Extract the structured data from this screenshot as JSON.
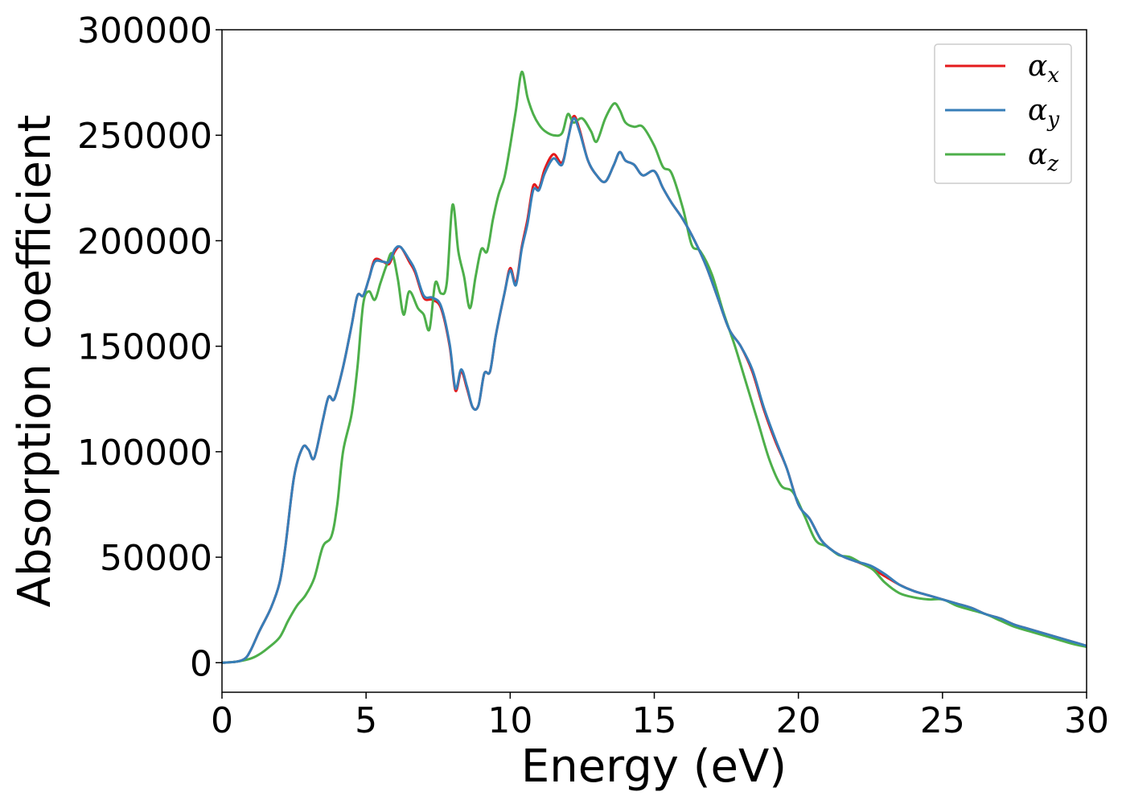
{
  "chart_data": {
    "type": "line",
    "title": "",
    "xlabel": "Energy (eV)",
    "ylabel": "Absorption coefficient",
    "xlim": [
      0,
      30
    ],
    "ylim": [
      -14000,
      300000
    ],
    "xticks": [
      "0",
      "5",
      "10",
      "15",
      "20",
      "25",
      "30"
    ],
    "yticks": [
      "0",
      "50000",
      "100000",
      "150000",
      "200000",
      "250000",
      "300000"
    ],
    "grid": false,
    "legend_position": "top-right",
    "series": [
      {
        "name": "α",
        "subscript": "x",
        "color": "#e41a1c",
        "x": [
          0,
          0.5,
          0.8,
          1.0,
          1.3,
          1.7,
          2.0,
          2.2,
          2.5,
          2.8,
          3.0,
          3.2,
          3.5,
          3.7,
          3.9,
          4.2,
          4.5,
          4.7,
          4.9,
          5.1,
          5.3,
          5.6,
          5.8,
          6.0,
          6.2,
          6.5,
          6.7,
          7.0,
          7.3,
          7.6,
          7.9,
          8.1,
          8.3,
          8.5,
          8.7,
          8.9,
          9.1,
          9.3,
          9.5,
          9.8,
          10.0,
          10.2,
          10.4,
          10.6,
          10.8,
          11.0,
          11.2,
          11.5,
          11.8,
          12.0,
          12.2,
          12.4,
          12.7,
          13.0,
          13.3,
          13.6,
          13.8,
          14.0,
          14.3,
          14.6,
          15.0,
          15.3,
          15.6,
          16.0,
          16.4,
          16.8,
          17.2,
          17.6,
          18.0,
          18.4,
          18.8,
          19.2,
          19.6,
          20.0,
          20.4,
          20.8,
          21.2,
          21.6,
          22.0,
          22.5,
          23.0,
          23.5,
          24.0,
          24.5,
          25.0,
          25.5,
          26.0,
          26.5,
          27.0,
          27.5,
          28.0,
          28.5,
          29.0,
          29.5,
          30.0
        ],
        "y": [
          0,
          500,
          2000,
          6000,
          15000,
          26000,
          38000,
          55000,
          88000,
          102000,
          101000,
          97000,
          115000,
          126000,
          125000,
          140000,
          160000,
          174000,
          174000,
          182000,
          191000,
          190000,
          189000,
          195000,
          197000,
          190000,
          185000,
          173000,
          172000,
          168000,
          150000,
          129000,
          138000,
          130000,
          121000,
          122000,
          137000,
          138000,
          155000,
          175000,
          187000,
          180000,
          197000,
          210000,
          226000,
          225000,
          234000,
          241000,
          237000,
          248000,
          259000,
          253000,
          238000,
          231000,
          228000,
          236000,
          242000,
          238000,
          236000,
          231000,
          233000,
          225000,
          218000,
          210000,
          200000,
          188000,
          173000,
          158000,
          150000,
          138000,
          120000,
          105000,
          92000,
          75000,
          68000,
          58000,
          53000,
          50000,
          48000,
          45000,
          41000,
          37000,
          34000,
          32000,
          30000,
          28000,
          26000,
          23000,
          21000,
          18000,
          16000,
          14000,
          12000,
          10000,
          8000
        ]
      },
      {
        "name": "α",
        "subscript": "y",
        "color": "#377eb8",
        "x": [
          0,
          0.5,
          0.8,
          1.0,
          1.3,
          1.7,
          2.0,
          2.2,
          2.5,
          2.8,
          3.0,
          3.2,
          3.5,
          3.7,
          3.9,
          4.2,
          4.5,
          4.7,
          4.9,
          5.1,
          5.3,
          5.6,
          5.8,
          6.0,
          6.2,
          6.5,
          6.7,
          7.0,
          7.3,
          7.6,
          7.9,
          8.1,
          8.3,
          8.5,
          8.7,
          8.9,
          9.1,
          9.3,
          9.5,
          9.8,
          10.0,
          10.2,
          10.4,
          10.6,
          10.8,
          11.0,
          11.2,
          11.5,
          11.8,
          12.0,
          12.2,
          12.4,
          12.7,
          13.0,
          13.3,
          13.6,
          13.8,
          14.0,
          14.3,
          14.6,
          15.0,
          15.3,
          15.6,
          16.0,
          16.4,
          16.8,
          17.2,
          17.6,
          18.0,
          18.4,
          18.8,
          19.2,
          19.6,
          20.0,
          20.4,
          20.8,
          21.2,
          21.6,
          22.0,
          22.5,
          23.0,
          23.5,
          24.0,
          24.5,
          25.0,
          25.5,
          26.0,
          26.5,
          27.0,
          27.5,
          28.0,
          28.5,
          29.0,
          29.5,
          30.0
        ],
        "y": [
          0,
          500,
          2000,
          6000,
          15000,
          26000,
          38000,
          55000,
          88000,
          102000,
          101000,
          97000,
          115000,
          126000,
          125000,
          140000,
          160000,
          174000,
          174000,
          182000,
          190000,
          190000,
          190000,
          196000,
          197000,
          191000,
          186000,
          174000,
          173000,
          169000,
          151000,
          130000,
          139000,
          131000,
          121000,
          122000,
          137000,
          138000,
          155000,
          175000,
          186000,
          179000,
          196000,
          208000,
          224000,
          224000,
          232000,
          239000,
          236000,
          248000,
          258000,
          252000,
          238000,
          231000,
          228000,
          236000,
          242000,
          238000,
          236000,
          231000,
          233000,
          225000,
          218000,
          210000,
          200000,
          188000,
          173000,
          158000,
          150000,
          139000,
          121000,
          106000,
          92000,
          75000,
          68000,
          58000,
          53000,
          50000,
          48000,
          46000,
          42000,
          37000,
          34000,
          32000,
          30000,
          28000,
          26000,
          23000,
          21000,
          18000,
          16000,
          14000,
          12000,
          10000,
          8000
        ]
      },
      {
        "name": "α",
        "subscript": "z",
        "color": "#4daf4a",
        "x": [
          0,
          0.5,
          1.0,
          1.3,
          1.6,
          2.0,
          2.3,
          2.6,
          2.9,
          3.2,
          3.5,
          3.8,
          4.0,
          4.2,
          4.5,
          4.7,
          4.9,
          5.1,
          5.3,
          5.5,
          5.7,
          5.9,
          6.1,
          6.3,
          6.5,
          6.8,
          7.0,
          7.2,
          7.4,
          7.6,
          7.8,
          8.0,
          8.2,
          8.4,
          8.6,
          8.8,
          9.0,
          9.2,
          9.4,
          9.6,
          9.8,
          10.0,
          10.2,
          10.4,
          10.6,
          10.8,
          11.0,
          11.2,
          11.5,
          11.8,
          12.0,
          12.2,
          12.5,
          12.8,
          13.0,
          13.3,
          13.6,
          13.8,
          14.0,
          14.3,
          14.6,
          15.0,
          15.3,
          15.6,
          16.0,
          16.3,
          16.6,
          17.0,
          17.4,
          17.8,
          18.2,
          18.6,
          19.0,
          19.4,
          19.8,
          20.2,
          20.6,
          21.0,
          21.4,
          21.8,
          22.2,
          22.6,
          23.0,
          23.5,
          24.0,
          24.5,
          25.0,
          25.5,
          26.0,
          26.5,
          27.0,
          27.5,
          28.0,
          28.5,
          29.0,
          29.5,
          30.0
        ],
        "y": [
          0,
          500,
          2000,
          4000,
          7000,
          12000,
          20000,
          27000,
          32000,
          40000,
          55000,
          60000,
          75000,
          100000,
          118000,
          140000,
          170000,
          176000,
          172000,
          180000,
          188000,
          194000,
          182000,
          165000,
          176000,
          168000,
          165000,
          158000,
          180000,
          175000,
          180000,
          217000,
          195000,
          183000,
          168000,
          183000,
          196000,
          195000,
          210000,
          222000,
          230000,
          245000,
          262000,
          280000,
          268000,
          260000,
          255000,
          252000,
          250000,
          251000,
          260000,
          256000,
          258000,
          252000,
          247000,
          258000,
          265000,
          262000,
          256000,
          254000,
          254000,
          245000,
          235000,
          232000,
          215000,
          198000,
          195000,
          184000,
          166000,
          150000,
          132000,
          114000,
          96000,
          84000,
          81000,
          70000,
          58000,
          55000,
          51000,
          50000,
          47000,
          44000,
          38000,
          33000,
          31000,
          30000,
          30000,
          27000,
          25000,
          23000,
          20000,
          17000,
          15000,
          13000,
          11000,
          9000,
          7500
        ]
      }
    ]
  }
}
